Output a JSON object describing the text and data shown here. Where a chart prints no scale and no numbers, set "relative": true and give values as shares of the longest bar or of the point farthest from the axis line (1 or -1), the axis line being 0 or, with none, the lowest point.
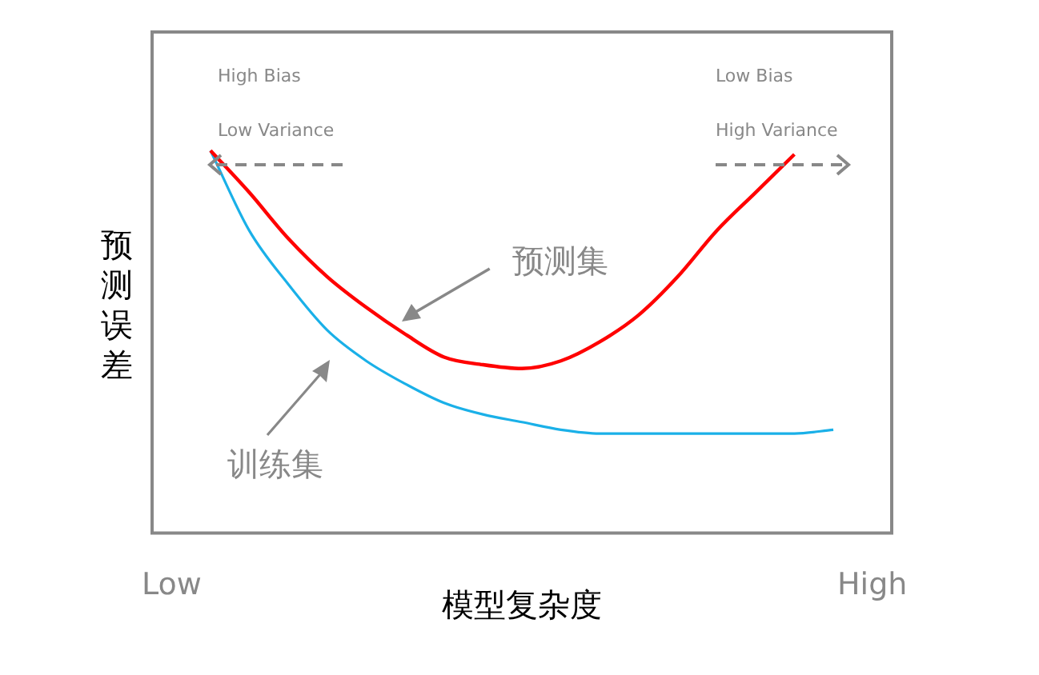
{
  "chart_data": {
    "type": "line",
    "relative": true,
    "xlabel": "模型复杂度",
    "ylabel": "预测误差",
    "marker": "none",
    "categories": [
      "Low",
      null,
      null,
      null,
      null,
      null,
      null,
      null,
      null,
      null,
      null,
      null,
      null,
      null,
      null,
      null,
      null,
      null,
      "High"
    ],
    "series": [
      {
        "name": "预测集",
        "color": "#ff0000",
        "values": [
          null,
          1,
          0.89,
          0.77,
          0.67,
          0.59,
          0.52,
          0.46,
          0.44,
          0.43,
          0.45,
          0.5,
          0.57,
          0.67,
          0.79,
          0.89,
          0.99,
          null,
          null
        ]
      },
      {
        "name": "训练集",
        "color": "#1ab0e8",
        "values": [
          null,
          1,
          0.79,
          0.65,
          0.53,
          0.45,
          0.39,
          0.34,
          0.31,
          0.29,
          0.27,
          0.26,
          0.26,
          0.26,
          0.26,
          0.26,
          0.26,
          0.27,
          null
        ]
      }
    ],
    "annotations": [
      "High Bias",
      "Low Variance",
      "Low Bias",
      "High Variance"
    ]
  }
}
